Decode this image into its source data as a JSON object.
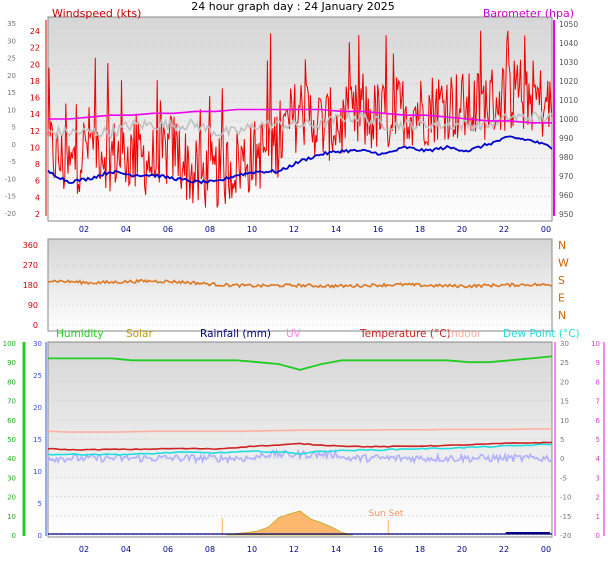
{
  "page_title": "24 hour graph day : 24 January 2025",
  "colors": {
    "windspeed": "#ee0000",
    "gust": "#ff0000",
    "avg_wind": "#c0c0c0",
    "wind_axis": "#cc0000",
    "barometer": "#ee00ee",
    "winddir": "#dd7722",
    "humidity": "#22cc22",
    "solar": "#b8a000",
    "rainfall": "#000080",
    "uv": "#ee88ee",
    "temperature": "#cc2222",
    "indoor": "#ffb0a0",
    "dewpoint": "#22dddd",
    "blue_series": "#0000cc",
    "lavender_series": "#b0b0ff",
    "solar_fill": "#ffb060",
    "hour_labels": "#000088",
    "panel_bg_top": "#d8d8d8",
    "panel_bg_bottom": "#ffffff"
  },
  "chart_data": [
    {
      "type": "line",
      "x_ticks": [
        "02",
        "04",
        "06",
        "08",
        "10",
        "12",
        "14",
        "16",
        "18",
        "20",
        "22",
        "00"
      ],
      "labels": {
        "left": "Windspeed (kts)",
        "right": "Barometer (hpa)"
      },
      "windspeed_axis_ticks": [
        "24",
        "22",
        "20",
        "18",
        "16",
        "14",
        "12",
        "10",
        "8",
        "6",
        "4",
        "2"
      ],
      "outer_left_ticks": [
        "35",
        "30",
        "25",
        "20",
        "15",
        "10",
        "5",
        "0",
        "-5",
        "-10",
        "-15",
        "-20"
      ],
      "barometer_axis_ticks": [
        "1050",
        "1040",
        "1030",
        "1020",
        "1010",
        "1000",
        "990",
        "980",
        "970",
        "960",
        "950"
      ],
      "ylim_windspeed": [
        0,
        25
      ],
      "ylim_barometer": [
        945,
        1050
      ],
      "series": [
        {
          "name": "Windspeed (kts)",
          "values": [
            9,
            6,
            10,
            8,
            8,
            7,
            9,
            5,
            5,
            7,
            8,
            10,
            14,
            12,
            12,
            13,
            13,
            14,
            14,
            15,
            14,
            15,
            16,
            16,
            14
          ]
        },
        {
          "name": "Barometer (hpa)",
          "values": [
            1000,
            1000,
            1001,
            1002,
            1002,
            1003,
            1003,
            1004,
            1004,
            1005,
            1005,
            1005,
            1005,
            1005,
            1004,
            1004,
            1003,
            1002,
            1002,
            1001,
            1000,
            999,
            999,
            998,
            998
          ]
        },
        {
          "values": [
            11,
            11,
            11,
            11,
            12,
            12,
            12,
            12,
            11,
            11,
            12,
            12,
            12,
            12,
            13,
            13,
            12,
            12,
            12,
            12,
            12,
            12,
            13,
            13,
            13
          ]
        },
        {
          "values": [
            -8,
            -11,
            -10,
            -8,
            -9,
            -9,
            -10,
            -11,
            -11,
            -9,
            -8,
            -8,
            -5,
            -3,
            -2,
            -2,
            -3,
            -1,
            -2,
            -1,
            -2,
            0,
            2,
            1,
            -1
          ]
        }
      ]
    },
    {
      "type": "line",
      "y_ticks": [
        "360",
        "270",
        "180",
        "90",
        "0"
      ],
      "compass_labels": [
        "N",
        "W",
        "S",
        "E",
        "N"
      ],
      "ylim": [
        0,
        360
      ],
      "series": [
        {
          "values": [
            200,
            195,
            190,
            192,
            196,
            198,
            195,
            190,
            182,
            178,
            176,
            178,
            178,
            176,
            175,
            178,
            180,
            182,
            178,
            176,
            175,
            178,
            180,
            182,
            180
          ]
        }
      ]
    },
    {
      "type": "line",
      "x_ticks": [
        "02",
        "04",
        "06",
        "08",
        "10",
        "12",
        "14",
        "16",
        "18",
        "20",
        "22",
        "00"
      ],
      "legend": [
        "Humidity",
        "Solar",
        "Rainfall (mm)",
        "UV",
        "Temperature (°C)",
        "Indoor",
        "Dew Point (°C)"
      ],
      "annotation": "Sun Set",
      "humidity_axis_ticks": [
        "100",
        "90",
        "80",
        "70",
        "60",
        "50",
        "40",
        "30",
        "20",
        "10",
        "0"
      ],
      "solar_axis_ticks": [
        "30",
        "25",
        "20",
        "15",
        "10",
        "5",
        "0"
      ],
      "right_temp_ticks": [
        "30",
        "25",
        "20",
        "15",
        "10",
        "5",
        "0",
        "-5",
        "-10",
        "-15",
        "-20"
      ],
      "right_uv_ticks": [
        "10",
        "9",
        "8",
        "7",
        "6",
        "5",
        "4",
        "3",
        "2",
        "1",
        "0"
      ],
      "ylim_humidity": [
        0,
        100
      ],
      "ylim_temperature": [
        -20,
        30
      ],
      "series": [
        {
          "name": "Humidity",
          "values": [
            92,
            92,
            92,
            92,
            91,
            91,
            91,
            91,
            91,
            91,
            90,
            89,
            86,
            89,
            91,
            91,
            91,
            91,
            91,
            91,
            90,
            90,
            91,
            92,
            93
          ]
        },
        {
          "name": "Temperature (°C)",
          "values": [
            2.5,
            2.2,
            2.2,
            2.3,
            2.3,
            2.4,
            2.5,
            2.5,
            2.4,
            2.8,
            3.2,
            3.4,
            3.8,
            3.4,
            3.2,
            3.0,
            3.0,
            3.1,
            3.2,
            3.3,
            3.5,
            3.7,
            3.9,
            4.0,
            4.1
          ]
        },
        {
          "name": "Indoor",
          "values": [
            7,
            6.8,
            6.8,
            6.8,
            6.9,
            7,
            7,
            7,
            7,
            7,
            7.1,
            7.2,
            7.3,
            7.3,
            7.3,
            7.3,
            7.4,
            7.4,
            7.4,
            7.5,
            7.5,
            7.5,
            7.5,
            7.6,
            7.6
          ]
        },
        {
          "name": "Dew Point (°C)",
          "values": [
            1,
            1,
            1,
            1,
            1,
            1.2,
            1.5,
            1.5,
            1.4,
            1.6,
            1.8,
            1.6,
            1.2,
            1.8,
            2,
            2.1,
            2.2,
            2.4,
            2.5,
            2.6,
            2.8,
            3.0,
            3.2,
            3.4,
            3.6
          ]
        },
        {
          "values": [
            0,
            0,
            0,
            0,
            0,
            0,
            0,
            0,
            0,
            0,
            0,
            0,
            0,
            0,
            0,
            0,
            0,
            0,
            0,
            0,
            0,
            0,
            0,
            0,
            0
          ]
        },
        {
          "name": "Solar",
          "x": [
            8.5,
            9,
            9.5,
            10,
            10.5,
            11,
            11.5,
            12,
            12.5,
            13,
            13.5,
            14,
            14.5
          ],
          "values": [
            0,
            0.3,
            0.5,
            0.8,
            1.6,
            3.5,
            4.2,
            4.8,
            3.2,
            2.5,
            1.6,
            0.5,
            0
          ]
        }
      ]
    }
  ]
}
